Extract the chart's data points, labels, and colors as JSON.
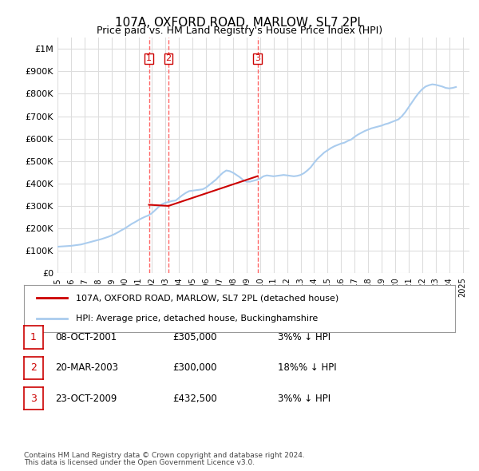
{
  "title": "107A, OXFORD ROAD, MARLOW, SL7 2PL",
  "subtitle": "Price paid vs. HM Land Registry's House Price Index (HPI)",
  "ylabel_ticks": [
    "£0",
    "£100K",
    "£200K",
    "£300K",
    "£400K",
    "£500K",
    "£600K",
    "£700K",
    "£800K",
    "£900K",
    "£1M"
  ],
  "ytick_vals": [
    0,
    100000,
    200000,
    300000,
    400000,
    500000,
    600000,
    700000,
    800000,
    900000,
    1000000
  ],
  "ylim": [
    0,
    1050000
  ],
  "xlim_start": 1995.0,
  "xlim_end": 2025.5,
  "transactions": [
    {
      "num": 1,
      "date": "08-OCT-2001",
      "price": 305000,
      "year": 2001.77,
      "hpi_pct": "3%",
      "dir": "↓"
    },
    {
      "num": 2,
      "date": "20-MAR-2003",
      "price": 300000,
      "year": 2003.22,
      "hpi_pct": "18%",
      "dir": "↓"
    },
    {
      "num": 3,
      "date": "23-OCT-2009",
      "price": 432500,
      "year": 2009.81,
      "hpi_pct": "3%",
      "dir": "↓"
    }
  ],
  "legend_label_red": "107A, OXFORD ROAD, MARLOW, SL7 2PL (detached house)",
  "legend_label_blue": "HPI: Average price, detached house, Buckinghamshire",
  "footer1": "Contains HM Land Registry data © Crown copyright and database right 2024.",
  "footer2": "This data is licensed under the Open Government Licence v3.0.",
  "red_color": "#cc0000",
  "blue_color": "#aaccee",
  "vline_color": "#ff6666",
  "bg_color": "#ffffff",
  "grid_color": "#dddddd",
  "hpi_data_years": [
    1995.0,
    1995.25,
    1995.5,
    1995.75,
    1996.0,
    1996.25,
    1996.5,
    1996.75,
    1997.0,
    1997.25,
    1997.5,
    1997.75,
    1998.0,
    1998.25,
    1998.5,
    1998.75,
    1999.0,
    1999.25,
    1999.5,
    1999.75,
    2000.0,
    2000.25,
    2000.5,
    2000.75,
    2001.0,
    2001.25,
    2001.5,
    2001.75,
    2002.0,
    2002.25,
    2002.5,
    2002.75,
    2003.0,
    2003.25,
    2003.5,
    2003.75,
    2004.0,
    2004.25,
    2004.5,
    2004.75,
    2005.0,
    2005.25,
    2005.5,
    2005.75,
    2006.0,
    2006.25,
    2006.5,
    2006.75,
    2007.0,
    2007.25,
    2007.5,
    2007.75,
    2008.0,
    2008.25,
    2008.5,
    2008.75,
    2009.0,
    2009.25,
    2009.5,
    2009.75,
    2010.0,
    2010.25,
    2010.5,
    2010.75,
    2011.0,
    2011.25,
    2011.5,
    2011.75,
    2012.0,
    2012.25,
    2012.5,
    2012.75,
    2013.0,
    2013.25,
    2013.5,
    2013.75,
    2014.0,
    2014.25,
    2014.5,
    2014.75,
    2015.0,
    2015.25,
    2015.5,
    2015.75,
    2016.0,
    2016.25,
    2016.5,
    2016.75,
    2017.0,
    2017.25,
    2017.5,
    2017.75,
    2018.0,
    2018.25,
    2018.5,
    2018.75,
    2019.0,
    2019.25,
    2019.5,
    2019.75,
    2020.0,
    2020.25,
    2020.5,
    2020.75,
    2021.0,
    2021.25,
    2021.5,
    2021.75,
    2022.0,
    2022.25,
    2022.5,
    2022.75,
    2023.0,
    2023.25,
    2023.5,
    2023.75,
    2024.0,
    2024.25,
    2024.5
  ],
  "hpi_values": [
    118000,
    119000,
    120000,
    121000,
    122000,
    124000,
    126000,
    128000,
    132000,
    136000,
    140000,
    144000,
    148000,
    152000,
    157000,
    162000,
    168000,
    175000,
    183000,
    192000,
    200000,
    210000,
    220000,
    228000,
    237000,
    245000,
    252000,
    258000,
    268000,
    282000,
    296000,
    308000,
    314000,
    318000,
    322000,
    324000,
    336000,
    348000,
    358000,
    366000,
    368000,
    370000,
    372000,
    374000,
    382000,
    394000,
    406000,
    418000,
    434000,
    448000,
    458000,
    455000,
    448000,
    438000,
    428000,
    415000,
    408000,
    408000,
    412000,
    416000,
    422000,
    432000,
    436000,
    434000,
    432000,
    434000,
    436000,
    438000,
    436000,
    434000,
    432000,
    434000,
    438000,
    446000,
    458000,
    472000,
    492000,
    510000,
    524000,
    538000,
    548000,
    558000,
    566000,
    572000,
    578000,
    582000,
    590000,
    596000,
    608000,
    618000,
    626000,
    634000,
    640000,
    646000,
    650000,
    654000,
    658000,
    664000,
    668000,
    674000,
    680000,
    686000,
    700000,
    718000,
    740000,
    762000,
    784000,
    804000,
    820000,
    832000,
    838000,
    842000,
    840000,
    836000,
    832000,
    826000,
    824000,
    826000,
    830000
  ],
  "price_paid_years": [
    2001.77,
    2003.22,
    2009.81
  ],
  "price_paid_values": [
    305000,
    300000,
    432500
  ],
  "xtick_years": [
    1995,
    1996,
    1997,
    1998,
    1999,
    2000,
    2001,
    2002,
    2003,
    2004,
    2005,
    2006,
    2007,
    2008,
    2009,
    2010,
    2011,
    2012,
    2013,
    2014,
    2015,
    2016,
    2017,
    2018,
    2019,
    2020,
    2021,
    2022,
    2023,
    2024,
    2025
  ]
}
